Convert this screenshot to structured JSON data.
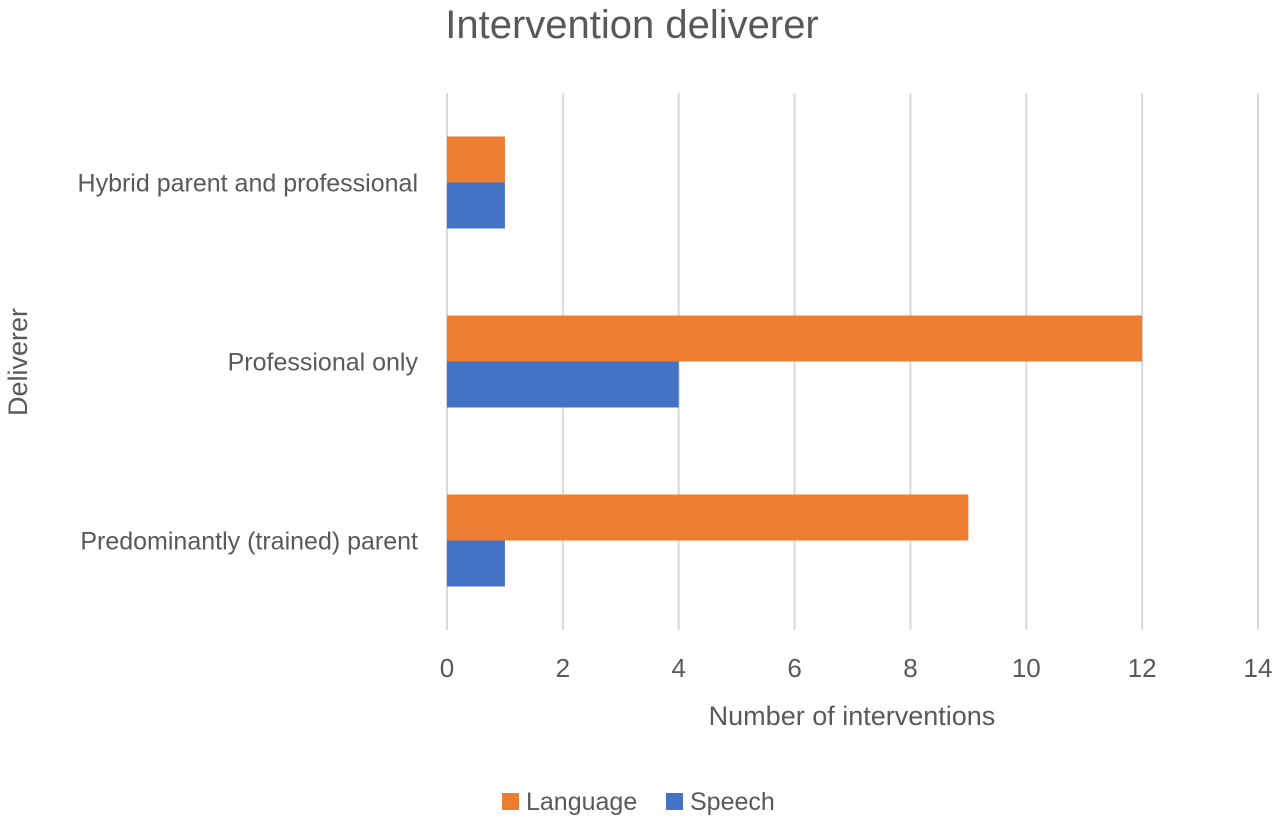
{
  "chart_data": {
    "type": "bar",
    "orientation": "horizontal",
    "title": "Intervention deliverer",
    "xlabel": "Number of interventions",
    "ylabel": "Deliverer",
    "categories": [
      "Hybrid parent and professional",
      "Professional only",
      "Predominantly (trained) parent"
    ],
    "series": [
      {
        "name": "Language",
        "color": "#ED7D31",
        "values": [
          1,
          12,
          9
        ]
      },
      {
        "name": "Speech",
        "color": "#4472C4",
        "values": [
          1,
          4,
          1
        ]
      }
    ],
    "xlim": [
      0,
      14
    ],
    "xticks": [
      "0",
      "2",
      "4",
      "6",
      "8",
      "10",
      "12",
      "14"
    ],
    "grid": true,
    "legend_position": "bottom"
  }
}
